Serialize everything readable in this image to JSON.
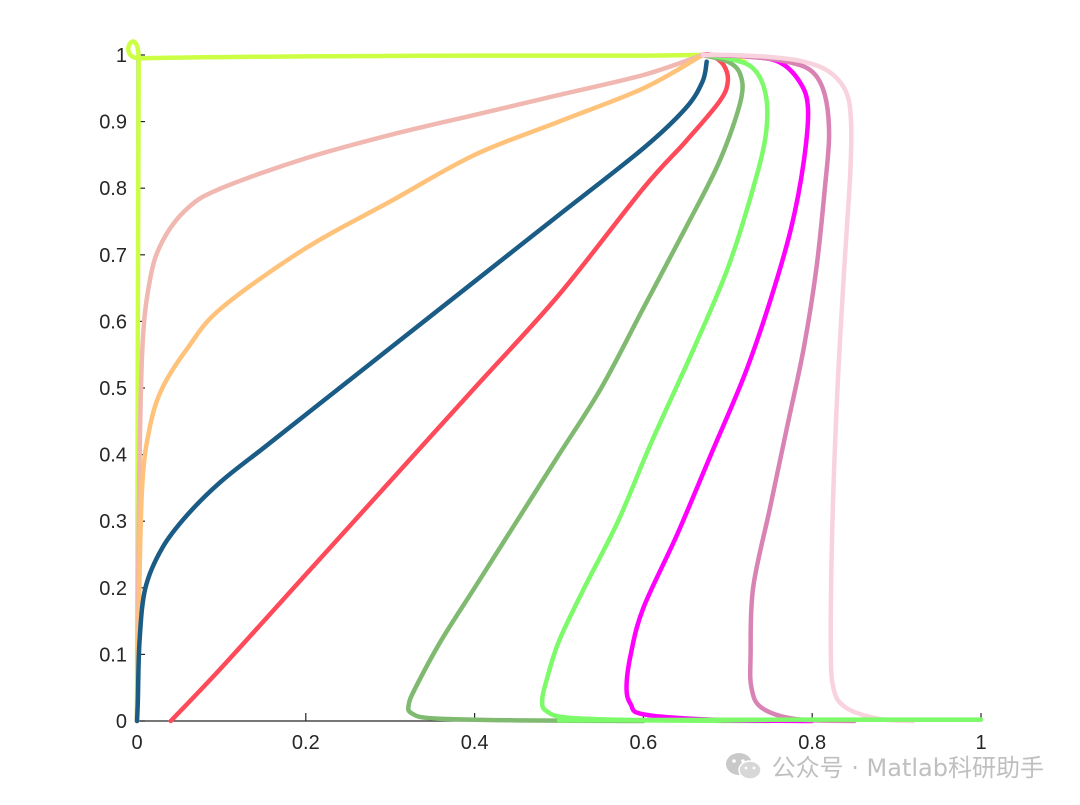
{
  "chart_data": {
    "type": "line",
    "title": "",
    "xlabel": "",
    "ylabel": "",
    "xlim": [
      0,
      1
    ],
    "ylim": [
      0,
      1
    ],
    "xticks": [
      "0",
      "0.2",
      "0.4",
      "0.6",
      "0.8",
      "1"
    ],
    "yticks": [
      "0",
      "0.1",
      "0.2",
      "0.3",
      "0.4",
      "0.5",
      "0.6",
      "0.7",
      "0.8",
      "0.9",
      "1"
    ],
    "grid": false,
    "legend": "none",
    "series": [
      {
        "color": "#ccff44",
        "points": [
          [
            0,
            0
          ],
          [
            0.001,
            0.6
          ],
          [
            0.002,
            0.99
          ],
          [
            0.005,
            0.995
          ],
          [
            0.2,
            0.998
          ],
          [
            0.4,
            0.999
          ],
          [
            0.6,
            0.999
          ],
          [
            0.67,
            1.0
          ],
          [
            0.7,
            0.997
          ],
          [
            0.72,
            0.99
          ]
        ]
      },
      {
        "color": "#f0b8b0",
        "points": [
          [
            0,
            0
          ],
          [
            0.002,
            0.3
          ],
          [
            0.006,
            0.55
          ],
          [
            0.015,
            0.66
          ],
          [
            0.03,
            0.72
          ],
          [
            0.06,
            0.77
          ],
          [
            0.1,
            0.8
          ],
          [
            0.2,
            0.845
          ],
          [
            0.3,
            0.88
          ],
          [
            0.4,
            0.91
          ],
          [
            0.5,
            0.94
          ],
          [
            0.6,
            0.97
          ],
          [
            0.67,
            1.0
          ]
        ]
      },
      {
        "color": "#ffc27a",
        "points": [
          [
            0,
            0
          ],
          [
            0.002,
            0.15
          ],
          [
            0.006,
            0.35
          ],
          [
            0.015,
            0.44
          ],
          [
            0.03,
            0.5
          ],
          [
            0.06,
            0.56
          ],
          [
            0.1,
            0.62
          ],
          [
            0.2,
            0.71
          ],
          [
            0.3,
            0.78
          ],
          [
            0.4,
            0.85
          ],
          [
            0.5,
            0.9
          ],
          [
            0.6,
            0.95
          ],
          [
            0.67,
            1.0
          ]
        ]
      },
      {
        "color": "#1a5c85",
        "points": [
          [
            0,
            0
          ],
          [
            0.001,
            0.03
          ],
          [
            0.003,
            0.12
          ],
          [
            0.01,
            0.2
          ],
          [
            0.03,
            0.26
          ],
          [
            0.06,
            0.31
          ],
          [
            0.1,
            0.36
          ],
          [
            0.15,
            0.41
          ],
          [
            0.2,
            0.46
          ],
          [
            0.3,
            0.56
          ],
          [
            0.4,
            0.66
          ],
          [
            0.5,
            0.76
          ],
          [
            0.6,
            0.86
          ],
          [
            0.65,
            0.92
          ],
          [
            0.67,
            0.96
          ],
          [
            0.675,
            0.99
          ]
        ]
      },
      {
        "color": "#ff4a5a",
        "points": [
          [
            0.04,
            0
          ],
          [
            0.1,
            0.08
          ],
          [
            0.2,
            0.22
          ],
          [
            0.3,
            0.36
          ],
          [
            0.4,
            0.5
          ],
          [
            0.5,
            0.64
          ],
          [
            0.6,
            0.8
          ],
          [
            0.65,
            0.87
          ],
          [
            0.69,
            0.93
          ],
          [
            0.7,
            0.96
          ],
          [
            0.695,
            0.985
          ],
          [
            0.68,
            1.0
          ],
          [
            0.67,
            1.0
          ]
        ]
      },
      {
        "color": "#7fba70",
        "points": [
          [
            0.6,
            0
          ],
          [
            0.45,
            0.001
          ],
          [
            0.35,
            0.004
          ],
          [
            0.325,
            0.012
          ],
          [
            0.322,
            0.025
          ],
          [
            0.33,
            0.05
          ],
          [
            0.36,
            0.12
          ],
          [
            0.4,
            0.2
          ],
          [
            0.45,
            0.3
          ],
          [
            0.5,
            0.4
          ],
          [
            0.55,
            0.5
          ],
          [
            0.6,
            0.62
          ],
          [
            0.65,
            0.74
          ],
          [
            0.69,
            0.84
          ],
          [
            0.715,
            0.93
          ],
          [
            0.715,
            0.97
          ],
          [
            0.7,
            0.99
          ],
          [
            0.67,
            1.0
          ]
        ]
      },
      {
        "color": "#7dfa6a",
        "points": [
          [
            0.75,
            0
          ],
          [
            0.6,
            0.001
          ],
          [
            0.51,
            0.005
          ],
          [
            0.485,
            0.015
          ],
          [
            0.48,
            0.03
          ],
          [
            0.485,
            0.06
          ],
          [
            0.5,
            0.12
          ],
          [
            0.53,
            0.2
          ],
          [
            0.57,
            0.3
          ],
          [
            0.61,
            0.42
          ],
          [
            0.66,
            0.56
          ],
          [
            0.7,
            0.68
          ],
          [
            0.73,
            0.8
          ],
          [
            0.745,
            0.88
          ],
          [
            0.745,
            0.94
          ],
          [
            0.73,
            0.98
          ],
          [
            0.7,
            0.995
          ],
          [
            0.67,
            1.0
          ]
        ]
      },
      {
        "color": "#ff00ff",
        "points": [
          [
            0.8,
            0
          ],
          [
            0.68,
            0.002
          ],
          [
            0.6,
            0.01
          ],
          [
            0.585,
            0.025
          ],
          [
            0.58,
            0.05
          ],
          [
            0.585,
            0.1
          ],
          [
            0.6,
            0.17
          ],
          [
            0.64,
            0.28
          ],
          [
            0.68,
            0.4
          ],
          [
            0.72,
            0.52
          ],
          [
            0.75,
            0.63
          ],
          [
            0.775,
            0.74
          ],
          [
            0.79,
            0.84
          ],
          [
            0.795,
            0.92
          ],
          [
            0.785,
            0.96
          ],
          [
            0.76,
            0.99
          ],
          [
            0.72,
            0.998
          ],
          [
            0.67,
            1.0
          ]
        ]
      },
      {
        "color": "#d982b4",
        "points": [
          [
            0.85,
            0
          ],
          [
            0.78,
            0.003
          ],
          [
            0.74,
            0.02
          ],
          [
            0.728,
            0.05
          ],
          [
            0.727,
            0.1
          ],
          [
            0.73,
            0.2
          ],
          [
            0.75,
            0.32
          ],
          [
            0.77,
            0.44
          ],
          [
            0.79,
            0.56
          ],
          [
            0.805,
            0.68
          ],
          [
            0.815,
            0.8
          ],
          [
            0.82,
            0.88
          ],
          [
            0.815,
            0.94
          ],
          [
            0.8,
            0.975
          ],
          [
            0.77,
            0.99
          ],
          [
            0.72,
            0.998
          ],
          [
            0.67,
            1.0
          ]
        ]
      },
      {
        "color": "#f8d2dc",
        "points": [
          [
            0.92,
            0
          ],
          [
            0.88,
            0.003
          ],
          [
            0.84,
            0.02
          ],
          [
            0.825,
            0.05
          ],
          [
            0.822,
            0.12
          ],
          [
            0.824,
            0.3
          ],
          [
            0.83,
            0.5
          ],
          [
            0.838,
            0.68
          ],
          [
            0.845,
            0.82
          ],
          [
            0.846,
            0.9
          ],
          [
            0.84,
            0.945
          ],
          [
            0.82,
            0.975
          ],
          [
            0.79,
            0.99
          ],
          [
            0.75,
            0.997
          ],
          [
            0.7,
            1.0
          ],
          [
            0.67,
            1.0
          ]
        ]
      },
      {
        "color": "#7dfa6a",
        "points": [
          [
            0.5,
            0.001
          ],
          [
            0.6,
            0.0015
          ],
          [
            0.8,
            0.002
          ],
          [
            1.0,
            0.002
          ]
        ]
      }
    ]
  },
  "watermark": {
    "text": "公众号 · Matlab科研助手",
    "icon": "wechat-icon"
  }
}
